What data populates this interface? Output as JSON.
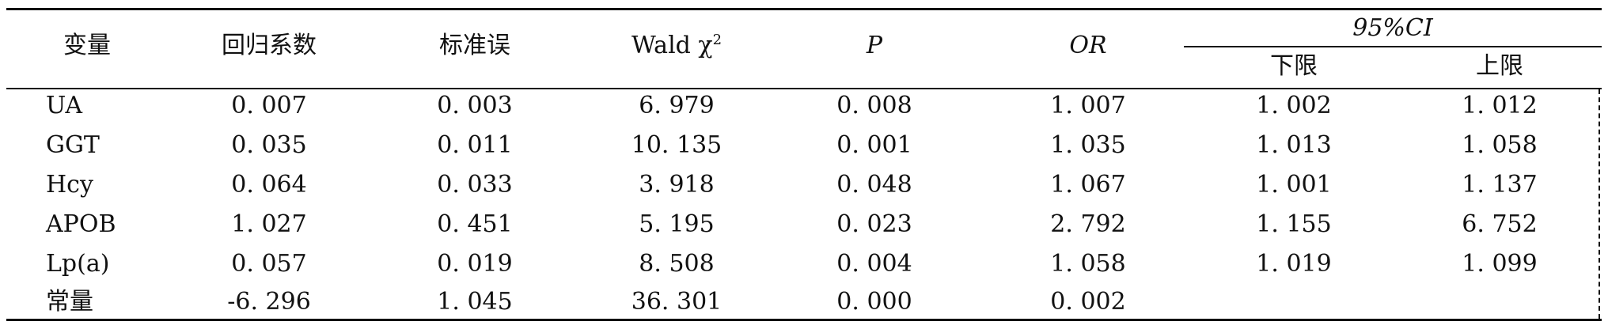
{
  "table": {
    "headers": {
      "variable": "变量",
      "coef": "回归系数",
      "se": "标准误",
      "wald_prefix": "Wald χ",
      "wald_sup": "2",
      "p": "P",
      "or": "OR",
      "ci_group": "95%CI",
      "ci_lower": "下限",
      "ci_upper": "上限"
    },
    "rows": [
      {
        "variable": "UA",
        "coef": "0. 007",
        "se": "0. 003",
        "wald": "6. 979",
        "p": "0. 008",
        "or": "1. 007",
        "lower": "1. 002",
        "upper": "1. 012"
      },
      {
        "variable": "GGT",
        "coef": "0. 035",
        "se": "0. 011",
        "wald": "10. 135",
        "p": "0. 001",
        "or": "1. 035",
        "lower": "1. 013",
        "upper": "1. 058"
      },
      {
        "variable": "Hcy",
        "coef": "0. 064",
        "se": "0. 033",
        "wald": "3. 918",
        "p": "0. 048",
        "or": "1. 067",
        "lower": "1. 001",
        "upper": "1. 137"
      },
      {
        "variable": "APOB",
        "coef": "1. 027",
        "se": "0. 451",
        "wald": "5. 195",
        "p": "0. 023",
        "or": "2. 792",
        "lower": "1. 155",
        "upper": "6. 752"
      },
      {
        "variable": "Lp(a)",
        "coef": "0. 057",
        "se": "0. 019",
        "wald": "8. 508",
        "p": "0. 004",
        "or": "1. 058",
        "lower": "1. 019",
        "upper": "1. 099"
      },
      {
        "variable": "常量",
        "coef": "-6. 296",
        "se": "1. 045",
        "wald": "36. 301",
        "p": "0. 000",
        "or": "0. 002",
        "lower": "",
        "upper": ""
      }
    ]
  }
}
